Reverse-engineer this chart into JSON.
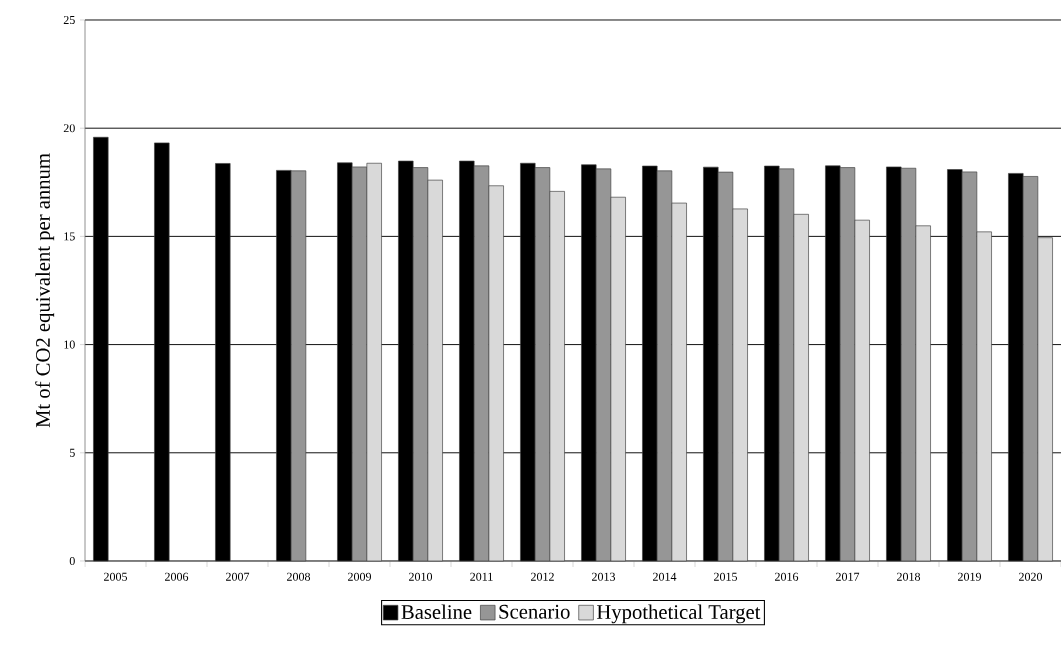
{
  "chart_data": {
    "type": "bar",
    "ylabel": "Mt of CO2 equivalent per annum",
    "categories": [
      "2005",
      "2006",
      "2007",
      "2008",
      "2009",
      "2010",
      "2011",
      "2012",
      "2013",
      "2014",
      "2015",
      "2016",
      "2017",
      "2018",
      "2019",
      "2020"
    ],
    "series": [
      {
        "name": "Baseline",
        "color": "#000000",
        "values": [
          19.58,
          19.32,
          18.37,
          18.05,
          18.4,
          18.48,
          18.48,
          18.38,
          18.31,
          18.25,
          18.2,
          18.25,
          18.26,
          18.21,
          18.09,
          17.91
        ]
      },
      {
        "name": "Scenario",
        "color": "#969696",
        "values": [
          null,
          null,
          null,
          18.03,
          18.21,
          18.18,
          18.26,
          18.18,
          18.12,
          18.03,
          17.97,
          18.12,
          18.18,
          18.15,
          17.98,
          17.77
        ]
      },
      {
        "name": "Hypothetical Target",
        "color": "#d9d9d9",
        "values": [
          null,
          null,
          null,
          null,
          18.38,
          17.6,
          17.34,
          17.08,
          16.81,
          16.54,
          16.27,
          16.02,
          15.75,
          15.49,
          15.21,
          14.94
        ]
      }
    ],
    "ylim": [
      0,
      25
    ],
    "yticks": [
      0,
      5,
      10,
      15,
      20,
      25
    ],
    "grid": "y",
    "legend": "bottom"
  }
}
